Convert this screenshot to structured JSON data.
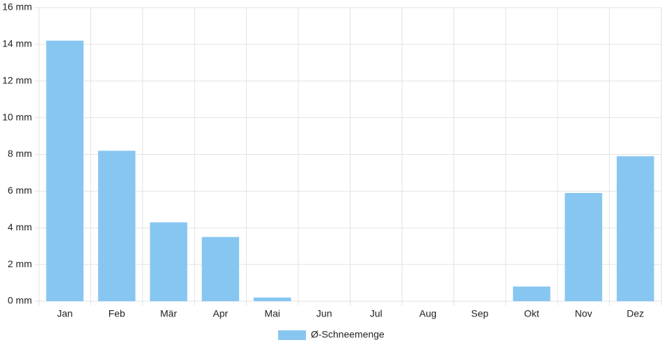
{
  "chart_data": {
    "type": "bar",
    "categories": [
      "Jan",
      "Feb",
      "Mär",
      "Apr",
      "Mai",
      "Jun",
      "Jul",
      "Aug",
      "Sep",
      "Okt",
      "Nov",
      "Dez"
    ],
    "series": [
      {
        "name": "Ø-Schneemenge",
        "color": "#88c6f2",
        "values": [
          14.2,
          8.2,
          4.3,
          3.5,
          0.2,
          0,
          0,
          0,
          0,
          0.8,
          5.9,
          7.9
        ]
      }
    ],
    "ylim": [
      0,
      16
    ],
    "yticks": [
      {
        "value": 0,
        "label": "0 mm"
      },
      {
        "value": 2,
        "label": "2 mm"
      },
      {
        "value": 4,
        "label": "4 mm"
      },
      {
        "value": 6,
        "label": "6 mm"
      },
      {
        "value": 8,
        "label": "8 mm"
      },
      {
        "value": 10,
        "label": "10 mm"
      },
      {
        "value": 12,
        "label": "12 mm"
      },
      {
        "value": 14,
        "label": "14 mm"
      },
      {
        "value": 16,
        "label": "16 mm"
      }
    ],
    "grid": true,
    "legend": "bottom"
  }
}
